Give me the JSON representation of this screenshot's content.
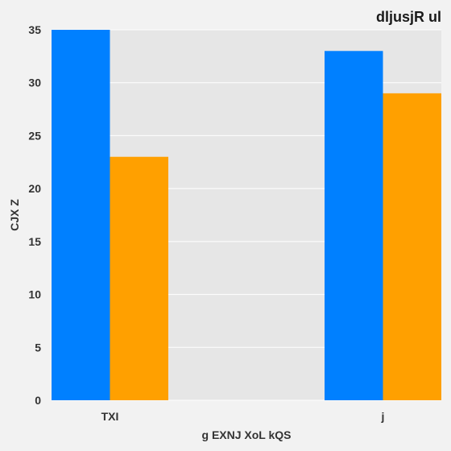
{
  "chart_data": {
    "type": "bar",
    "title": "dljusjR  ul",
    "xlabel": "g EXNJ XoL kQS",
    "ylabel": "CJX  Z",
    "categories": [
      "TXI",
      "j"
    ],
    "series": [
      {
        "values": [
          35,
          33
        ]
      },
      {
        "values": [
          23,
          29
        ]
      }
    ],
    "ylim": [
      0,
      35
    ],
    "yticks": [
      0,
      5,
      10,
      15,
      20,
      25,
      30,
      35
    ],
    "grid": true,
    "legend": "none"
  },
  "colors": {
    "series": [
      "#0080ff",
      "#ffa000"
    ],
    "plot_background": "#e6e6e6",
    "page_background": "#f2f2f2",
    "grid": "#ffffff"
  }
}
